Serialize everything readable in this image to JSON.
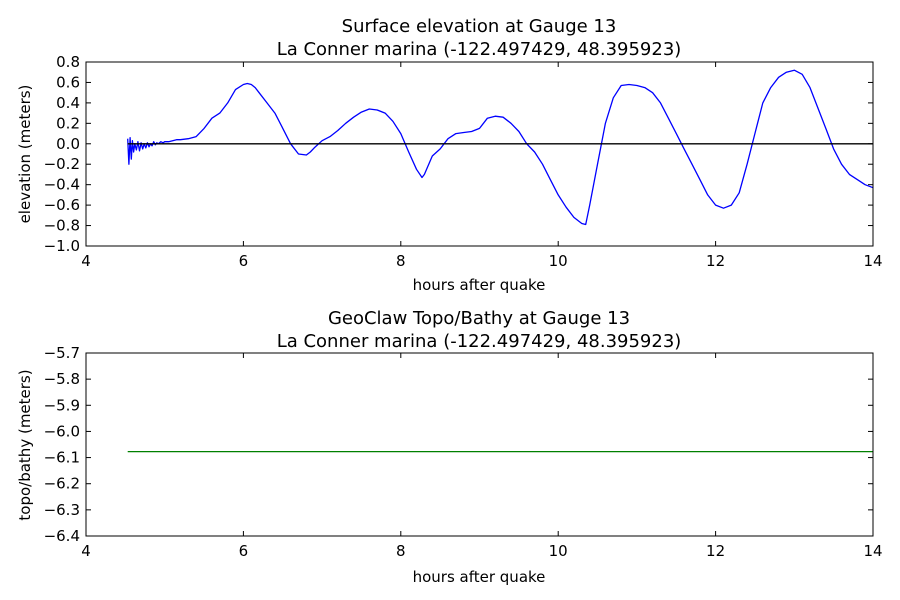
{
  "chart_data": [
    {
      "type": "line",
      "title": "Surface elevation at Gauge 13",
      "subtitle": "La Conner marina  (-122.497429, 48.395923)",
      "xlabel": "hours after quake",
      "ylabel": "elevation (meters)",
      "xlim": [
        4,
        14
      ],
      "ylim": [
        -1.0,
        0.8
      ],
      "xticks": [
        "4",
        "6",
        "8",
        "10",
        "12",
        "14"
      ],
      "yticks": [
        "−1.0",
        "−0.8",
        "−0.6",
        "−0.4",
        "−0.2",
        "0.0",
        "0.2",
        "0.4",
        "0.6",
        "0.8"
      ],
      "grid": false,
      "series": [
        {
          "color": "#0000ff",
          "x": [
            4.53,
            4.545,
            4.56,
            4.575,
            4.59,
            4.605,
            4.62,
            4.64,
            4.66,
            4.68,
            4.7,
            4.72,
            4.74,
            4.76,
            4.78,
            4.8,
            4.82,
            4.84,
            4.86,
            4.88,
            4.9,
            4.92,
            4.95,
            4.98,
            5.0,
            5.05,
            5.1,
            5.15,
            5.2,
            5.3,
            5.4,
            5.5,
            5.6,
            5.7,
            5.8,
            5.9,
            6.0,
            6.05,
            6.1,
            6.15,
            6.2,
            6.3,
            6.4,
            6.5,
            6.6,
            6.7,
            6.8,
            6.85,
            6.9,
            7.0,
            7.1,
            7.2,
            7.3,
            7.4,
            7.5,
            7.6,
            7.7,
            7.8,
            7.9,
            8.0,
            8.1,
            8.2,
            8.27,
            8.3,
            8.4,
            8.5,
            8.6,
            8.7,
            8.8,
            8.9,
            9.0,
            9.1,
            9.2,
            9.3,
            9.4,
            9.5,
            9.6,
            9.7,
            9.8,
            9.9,
            10.0,
            10.1,
            10.2,
            10.3,
            10.35,
            10.4,
            10.5,
            10.6,
            10.7,
            10.8,
            10.9,
            11.0,
            11.1,
            11.2,
            11.3,
            11.4,
            11.5,
            11.6,
            11.7,
            11.8,
            11.9,
            12.0,
            12.1,
            12.2,
            12.3,
            12.4,
            12.5,
            12.6,
            12.7,
            12.8,
            12.9,
            13.0,
            13.1,
            13.2,
            13.3,
            13.4,
            13.5,
            13.6,
            13.7,
            13.8,
            13.9,
            14.0
          ],
          "y": [
            0.05,
            -0.2,
            0.06,
            -0.15,
            0.03,
            -0.08,
            0.0,
            -0.06,
            0.02,
            -0.07,
            0.01,
            -0.05,
            0.0,
            -0.04,
            0.01,
            -0.03,
            0.0,
            -0.02,
            0.02,
            -0.01,
            0.01,
            0.0,
            0.02,
            0.01,
            0.02,
            0.02,
            0.03,
            0.04,
            0.04,
            0.05,
            0.07,
            0.15,
            0.25,
            0.3,
            0.4,
            0.53,
            0.58,
            0.59,
            0.58,
            0.55,
            0.5,
            0.4,
            0.3,
            0.15,
            0.0,
            -0.1,
            -0.11,
            -0.08,
            -0.04,
            0.03,
            0.07,
            0.13,
            0.2,
            0.26,
            0.31,
            0.34,
            0.33,
            0.3,
            0.22,
            0.1,
            -0.08,
            -0.25,
            -0.33,
            -0.3,
            -0.12,
            -0.05,
            0.05,
            0.1,
            0.11,
            0.12,
            0.15,
            0.25,
            0.27,
            0.26,
            0.2,
            0.12,
            0.0,
            -0.08,
            -0.2,
            -0.35,
            -0.5,
            -0.62,
            -0.72,
            -0.78,
            -0.79,
            -0.6,
            -0.2,
            0.2,
            0.45,
            0.57,
            0.58,
            0.57,
            0.55,
            0.5,
            0.4,
            0.25,
            0.1,
            -0.05,
            -0.2,
            -0.35,
            -0.5,
            -0.6,
            -0.63,
            -0.6,
            -0.48,
            -0.2,
            0.1,
            0.4,
            0.55,
            0.65,
            0.7,
            0.72,
            0.68,
            0.55,
            0.35,
            0.15,
            -0.05,
            -0.2,
            -0.3,
            -0.35,
            -0.4,
            -0.43
          ]
        },
        {
          "color": "#000000",
          "x": [
            4.53,
            14.0
          ],
          "y": [
            0.0,
            0.0
          ]
        }
      ]
    },
    {
      "type": "line",
      "title": "GeoClaw Topo/Bathy at Gauge 13",
      "subtitle": "La Conner marina  (-122.497429, 48.395923)",
      "xlabel": "hours after quake",
      "ylabel": "topo/bathy (meters)",
      "xlim": [
        4,
        14
      ],
      "ylim": [
        -6.4,
        -5.7
      ],
      "xticks": [
        "4",
        "6",
        "8",
        "10",
        "12",
        "14"
      ],
      "yticks": [
        "−6.4",
        "−6.3",
        "−6.2",
        "−6.1",
        "−6.0",
        "−5.9",
        "−5.8",
        "−5.7"
      ],
      "grid": false,
      "series": [
        {
          "color": "#008000",
          "x": [
            4.53,
            14.0
          ],
          "y": [
            -6.077,
            -6.077
          ]
        }
      ]
    }
  ]
}
